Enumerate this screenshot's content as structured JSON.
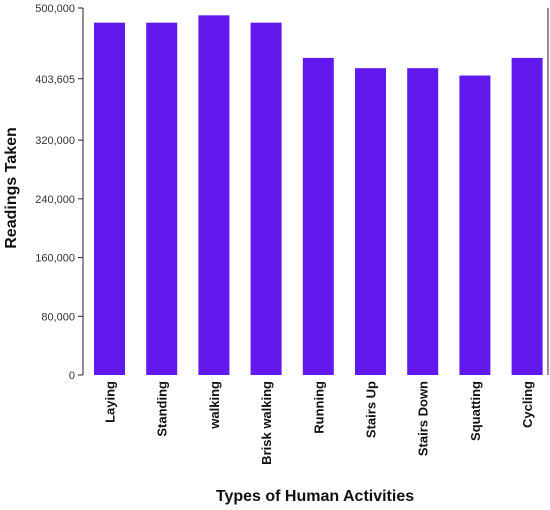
{
  "chart_data": {
    "type": "bar",
    "categories": [
      "Laying",
      "Standing",
      "walking",
      "Brisk walking",
      "Running",
      "Stairs Up",
      "Stairs Down",
      "Squatting",
      "Cycling"
    ],
    "values": [
      480000,
      480000,
      490000,
      480000,
      432000,
      418000,
      418000,
      408000,
      432000
    ],
    "xlabel": "Types of Human Activities",
    "ylabel": "Readings Taken",
    "ylim": [
      0,
      500000
    ],
    "yticks": [
      0,
      80000,
      160000,
      240000,
      320000,
      403605,
      500000
    ],
    "ytick_labels": [
      "0",
      "80,000",
      "160,000",
      "240,000",
      "320,000",
      "403,605",
      "500,000"
    ],
    "bar_color": "#6018ec",
    "grid": false
  }
}
